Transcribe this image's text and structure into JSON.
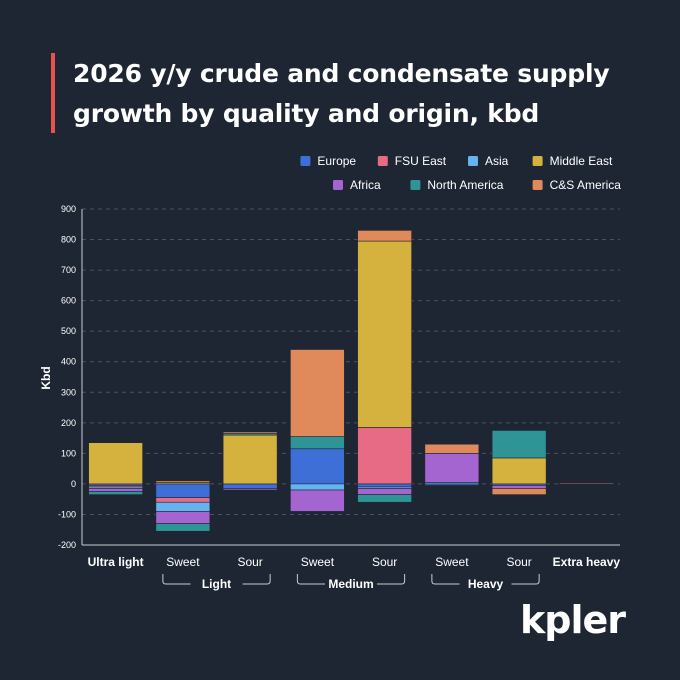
{
  "title": "2026 y/y crude and condensate supply growth by quality and origin, kbd",
  "brand": "kpler",
  "colors": {
    "background": "#1e2633",
    "accent": "#e8524a",
    "axis": "#c8ccd2",
    "grid": "#4a5261"
  },
  "chart_data": {
    "type": "bar",
    "stacked": true,
    "title": "2026 y/y crude and condensate supply growth by quality and origin, kbd",
    "xlabel": "",
    "ylabel": "Kbd",
    "ylim": [
      -200,
      900
    ],
    "yticks": [
      -200,
      -100,
      0,
      100,
      200,
      300,
      400,
      500,
      600,
      700,
      800,
      900
    ],
    "grid": true,
    "legend_position": "top-right",
    "categories": [
      "Ultra light",
      "Sweet",
      "Sour",
      "Sweet",
      "Sour",
      "Sweet",
      "Sour",
      "Extra heavy"
    ],
    "bold_categories": [
      "Ultra light",
      "Extra heavy"
    ],
    "groups": [
      {
        "label": "Light",
        "from": 1,
        "to": 2
      },
      {
        "label": "Medium",
        "from": 3,
        "to": 4
      },
      {
        "label": "Heavy",
        "from": 5,
        "to": 6
      }
    ],
    "series": [
      {
        "name": "Europe",
        "color": "#3d6fd6",
        "values": [
          -5,
          -45,
          -15,
          115,
          -10,
          -5,
          -5,
          0
        ]
      },
      {
        "name": "FSU East",
        "color": "#e86b86",
        "values": [
          -5,
          -15,
          0,
          0,
          185,
          0,
          0,
          0
        ]
      },
      {
        "name": "Asia",
        "color": "#66b3f2",
        "values": [
          -5,
          -30,
          0,
          -20,
          -5,
          5,
          0,
          0
        ]
      },
      {
        "name": "Middle East",
        "color": "#d4b23d",
        "values": [
          135,
          5,
          160,
          0,
          610,
          0,
          85,
          0
        ]
      },
      {
        "name": "Africa",
        "color": "#a465d1",
        "values": [
          -10,
          -40,
          -5,
          -70,
          -20,
          95,
          -10,
          0
        ]
      },
      {
        "name": "North America",
        "color": "#2e9496",
        "values": [
          -10,
          -25,
          5,
          40,
          -25,
          0,
          90,
          0
        ]
      },
      {
        "name": "C&S America",
        "color": "#e0895a",
        "values": [
          0,
          5,
          5,
          285,
          35,
          30,
          -20,
          2
        ]
      }
    ]
  }
}
